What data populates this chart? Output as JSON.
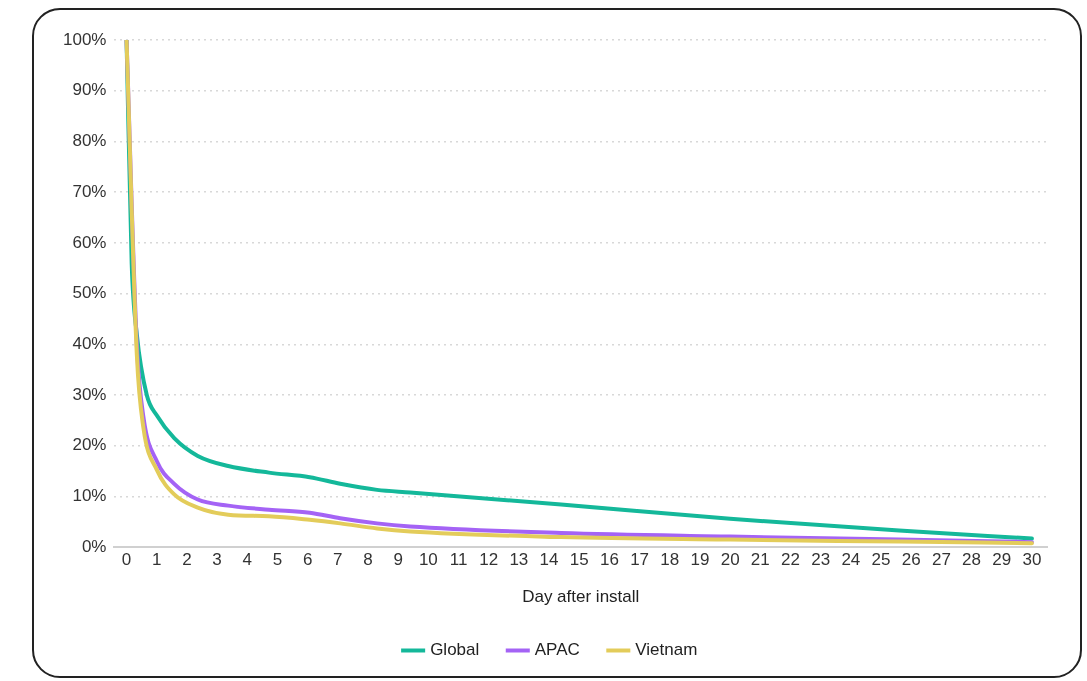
{
  "chart_data": {
    "type": "line",
    "xlabel": "Day after install",
    "xlim": [
      -0.4,
      30.5
    ],
    "xticks": [
      0,
      1,
      2,
      3,
      4,
      5,
      6,
      7,
      8,
      9,
      10,
      11,
      12,
      13,
      14,
      15,
      16,
      17,
      18,
      19,
      20,
      21,
      22,
      23,
      24,
      25,
      26,
      27,
      28,
      29,
      30
    ],
    "ylim": [
      0,
      100
    ],
    "yticks": [
      {
        "value": 0,
        "label": "0%"
      },
      {
        "value": 10,
        "label": "10%"
      },
      {
        "value": 20,
        "label": "20%"
      },
      {
        "value": 30,
        "label": "30%"
      },
      {
        "value": 40,
        "label": "40%"
      },
      {
        "value": 50,
        "label": "50%"
      },
      {
        "value": 60,
        "label": "60%"
      },
      {
        "value": 70,
        "label": "70%"
      },
      {
        "value": 80,
        "label": "80%"
      },
      {
        "value": 90,
        "label": "90%"
      },
      {
        "value": 100,
        "label": "100%"
      }
    ],
    "grid": "y",
    "legend": "bottom",
    "marker": "none",
    "line_style": "solid",
    "series": [
      {
        "name": "Global",
        "color": "#14b89a",
        "x": [
          0,
          0.17,
          0.34,
          0.67,
          1,
          1.58,
          2.36,
          3.37,
          4.72,
          6.07,
          7.08,
          8.3,
          9.4,
          14.4,
          20,
          25.6,
          30
        ],
        "values": [
          100,
          56,
          42,
          30,
          26,
          21.5,
          18,
          16,
          14.7,
          13.8,
          12.5,
          11.3,
          10.8,
          8.4,
          5.6,
          3.3,
          1.7
        ]
      },
      {
        "name": "APAC",
        "color": "#a463f5",
        "x": [
          0,
          0.34,
          0.56,
          1,
          1.58,
          2.36,
          3.37,
          4.72,
          6.07,
          7.08,
          8.3,
          9.4,
          14.4,
          20,
          25.6,
          30
        ],
        "values": [
          100,
          40,
          25.6,
          17,
          12.5,
          9.4,
          8.2,
          7.4,
          6.8,
          5.7,
          4.7,
          4.1,
          2.8,
          2.1,
          1.5,
          1
        ]
      },
      {
        "name": "Vietnam",
        "color": "#e3cc5a",
        "x": [
          0,
          0.34,
          0.56,
          1,
          1.58,
          2.36,
          3.37,
          4.72,
          6.07,
          7.08,
          8.3,
          9.4,
          14.4,
          20,
          25.6,
          30
        ],
        "values": [
          100,
          38,
          23.5,
          15.3,
          10.4,
          7.8,
          6.4,
          6.1,
          5.4,
          4.7,
          3.7,
          3.1,
          2,
          1.5,
          1.1,
          0.8
        ]
      }
    ]
  }
}
